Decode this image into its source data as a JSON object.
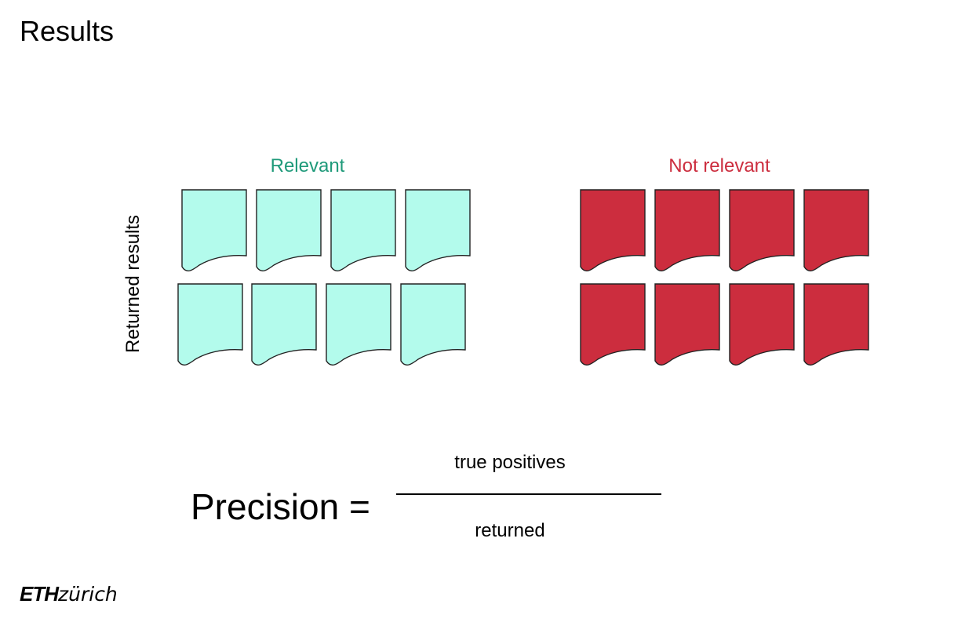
{
  "slide": {
    "title": "Results",
    "relevant_label": "Relevant",
    "not_relevant_label": "Not relevant",
    "row_label": "Returned results",
    "formula": {
      "lhs": "Precision =",
      "numerator": "true positives",
      "denominator": "returned"
    },
    "logo": {
      "bold": "ETH",
      "rest": "zürich"
    }
  },
  "documents": {
    "relevant_count": 8,
    "not_relevant_count": 8,
    "relevant_color": "#b3fbec",
    "relevant_label_color": "#1f9a7a",
    "not_relevant_color": "#cc2d3e",
    "not_relevant_label_color": "#cc2d3e",
    "icon": "document-icon"
  }
}
